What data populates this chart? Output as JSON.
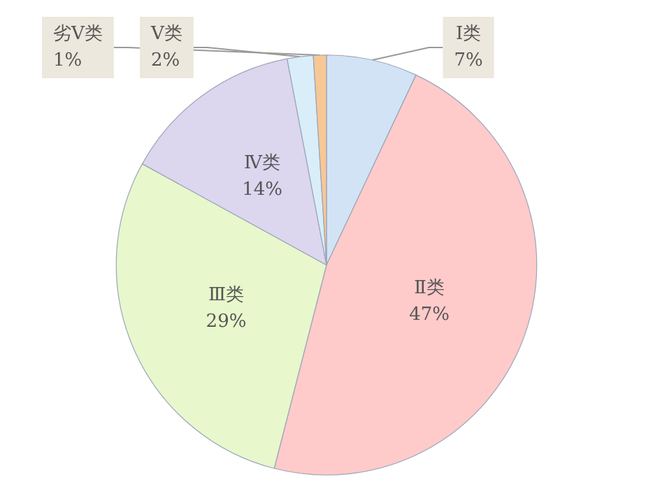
{
  "chart_data": {
    "type": "pie",
    "categories": [
      "Ⅰ类",
      "Ⅱ类",
      "Ⅲ类",
      "Ⅳ类",
      "Ⅴ类",
      "劣Ⅴ类"
    ],
    "values": [
      7,
      47,
      29,
      14,
      2,
      1
    ],
    "value_labels": [
      "7%",
      "47%",
      "29%",
      "14%",
      "2%",
      "1%"
    ],
    "colors": [
      "#d3e3f6",
      "#ffcaca",
      "#e8f7cc",
      "#ddd6ef",
      "#d9eef8",
      "#f8c796"
    ]
  }
}
